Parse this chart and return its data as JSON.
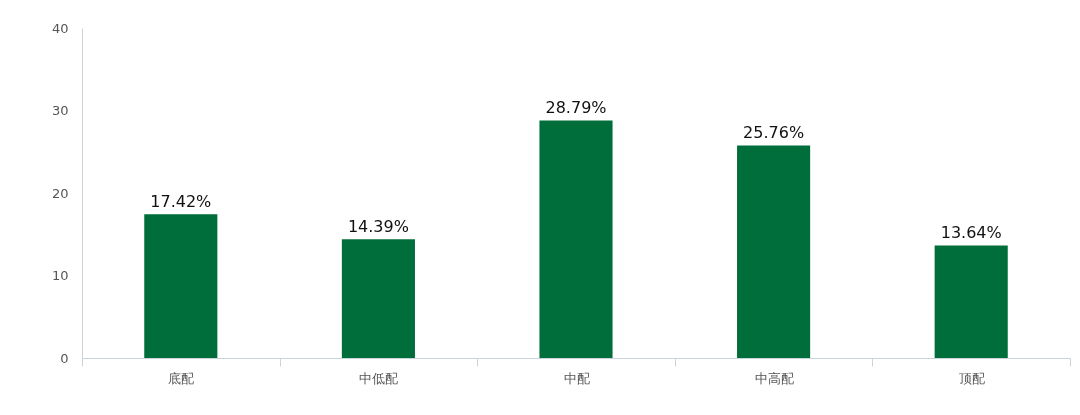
{
  "chart_data": {
    "type": "bar",
    "categories": [
      "底配",
      "中低配",
      "中配",
      "中高配",
      "顶配"
    ],
    "values": [
      17.42,
      14.39,
      28.79,
      25.76,
      13.64
    ],
    "value_labels": [
      "17.42%",
      "14.39%",
      "28.79%",
      "25.76%",
      "13.64%"
    ],
    "color": "#006e3a",
    "ylim": [
      0,
      40
    ],
    "yticks": [
      0,
      10,
      20,
      30,
      40
    ],
    "grid": false
  }
}
